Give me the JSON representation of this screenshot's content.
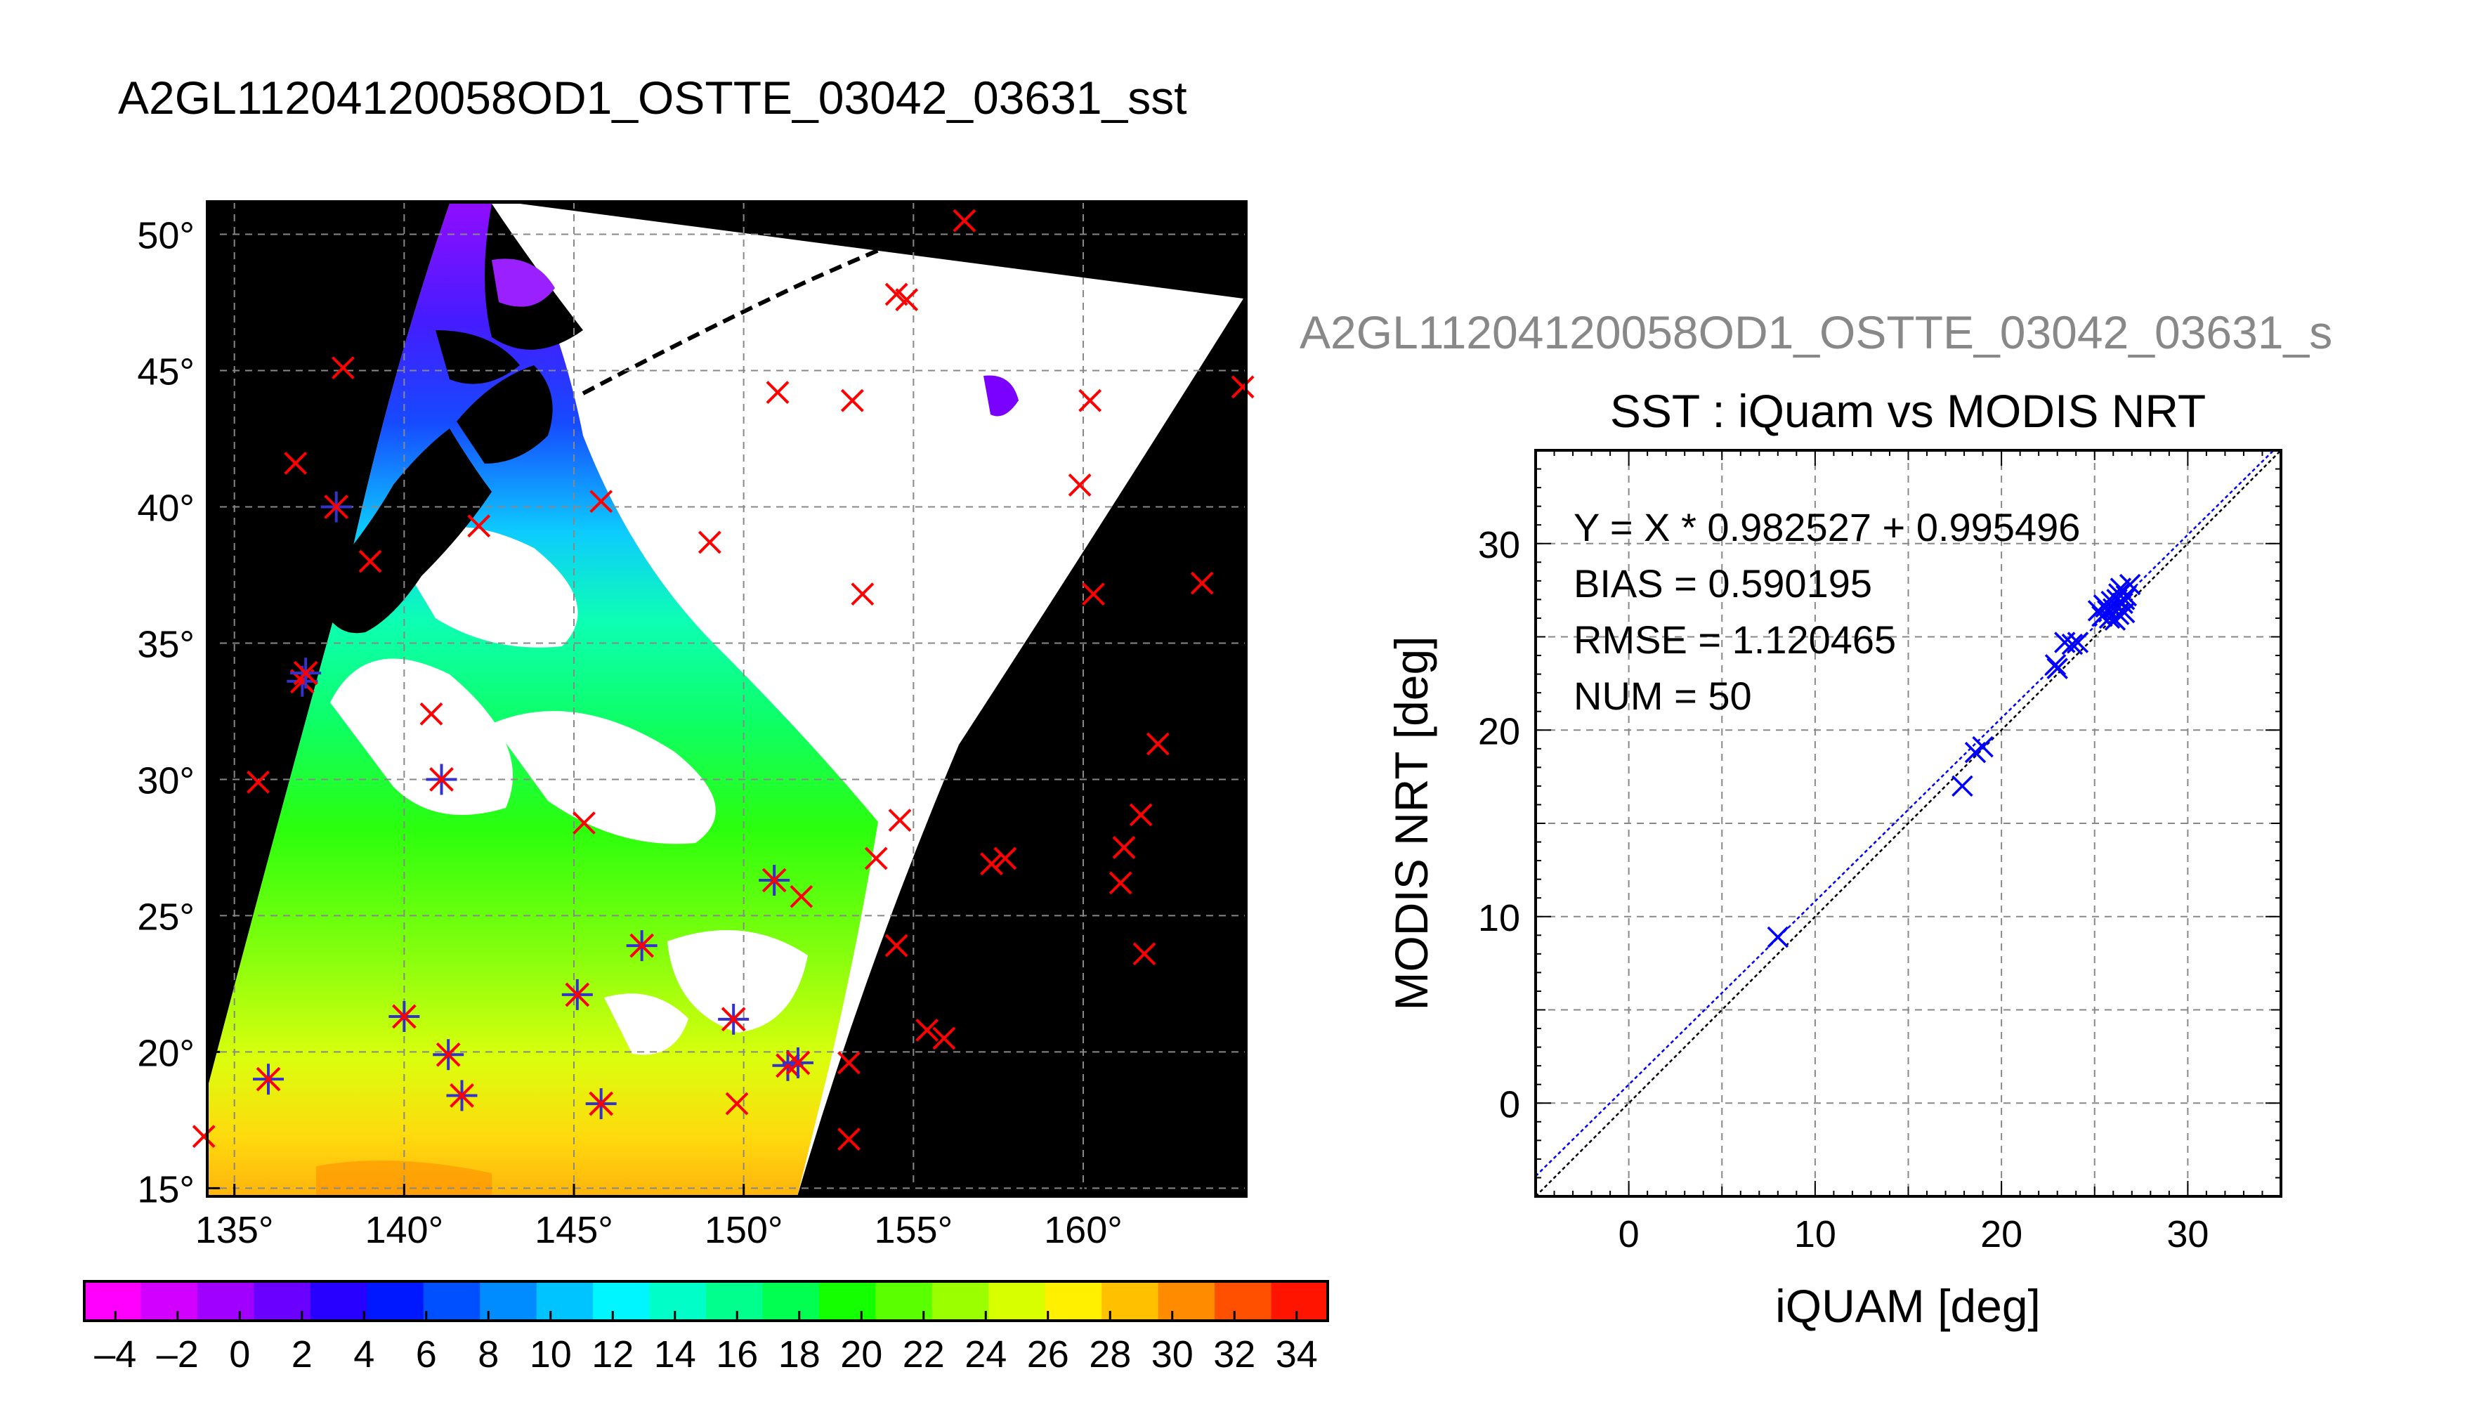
{
  "page": {
    "title": "A2GL11204120058OD1_OSTTE_03042_03631_sst",
    "title_secondary": "A2GL11204120058OD1_OSTTE_03042_03631_s"
  },
  "map": {
    "lon_ticks": [
      "135°",
      "140°",
      "145°",
      "150°",
      "155°",
      "160°"
    ],
    "lat_ticks": [
      "50°",
      "45°",
      "40°",
      "35°",
      "30°",
      "25°",
      "20°",
      "15°"
    ],
    "lon_range": [
      134.2,
      164.8
    ],
    "lat_range": [
      14.7,
      51.2
    ],
    "grid": true,
    "marker_color": "#ff0000",
    "matched_marker_color": "#3333cc",
    "insitu_x_points": [
      [
        156.5,
        50.5
      ],
      [
        154.5,
        47.8
      ],
      [
        154.8,
        47.6
      ],
      [
        138.2,
        45.1
      ],
      [
        151.0,
        44.2
      ],
      [
        153.2,
        43.9
      ],
      [
        160.2,
        43.9
      ],
      [
        164.7,
        44.4
      ],
      [
        136.8,
        41.6
      ],
      [
        159.9,
        40.8
      ],
      [
        145.8,
        40.2
      ],
      [
        149.0,
        38.7
      ],
      [
        153.5,
        36.8
      ],
      [
        160.3,
        36.8
      ],
      [
        163.5,
        37.2
      ],
      [
        140.8,
        32.4
      ],
      [
        162.2,
        31.3
      ],
      [
        135.7,
        29.9
      ],
      [
        145.3,
        28.4
      ],
      [
        154.6,
        28.5
      ],
      [
        161.7,
        28.7
      ],
      [
        161.2,
        27.5
      ],
      [
        153.9,
        27.1
      ],
      [
        157.3,
        26.9
      ],
      [
        157.7,
        27.1
      ],
      [
        161.1,
        26.2
      ],
      [
        151.7,
        25.7
      ],
      [
        154.5,
        23.9
      ],
      [
        161.8,
        23.6
      ],
      [
        155.4,
        20.8
      ],
      [
        155.9,
        20.5
      ],
      [
        153.1,
        19.6
      ],
      [
        149.8,
        18.1
      ],
      [
        134.1,
        16.9
      ],
      [
        153.1,
        16.8
      ],
      [
        139.0,
        38.0
      ],
      [
        142.2,
        39.3
      ]
    ],
    "matched_points": [
      [
        138.0,
        40.0
      ],
      [
        137.0,
        33.6
      ],
      [
        137.1,
        33.9
      ],
      [
        141.1,
        30.0
      ],
      [
        150.9,
        26.3
      ],
      [
        147.0,
        23.9
      ],
      [
        145.1,
        22.1
      ],
      [
        140.0,
        21.3
      ],
      [
        149.7,
        21.2
      ],
      [
        141.3,
        19.9
      ],
      [
        151.3,
        19.5
      ],
      [
        151.6,
        19.6
      ],
      [
        136.0,
        19.0
      ],
      [
        141.7,
        18.4
      ],
      [
        145.8,
        18.1
      ]
    ]
  },
  "colorbar": {
    "ticks": [
      "–4",
      "–2",
      "0",
      "2",
      "4",
      "6",
      "8",
      "10",
      "12",
      "14",
      "16",
      "18",
      "20",
      "22",
      "24",
      "26",
      "28",
      "30",
      "32",
      "34"
    ],
    "min": -5,
    "max": 35,
    "colors": [
      "#ff00ff",
      "#d200ff",
      "#a000ff",
      "#6a00ff",
      "#2800ff",
      "#0018ff",
      "#0050ff",
      "#008cff",
      "#00c4ff",
      "#00f6ff",
      "#00ffc8",
      "#00ff8c",
      "#00ff50",
      "#14ff00",
      "#5aff00",
      "#9cff00",
      "#d8ff00",
      "#fff000",
      "#ffc000",
      "#ff8c00",
      "#ff5000",
      "#ff1400"
    ]
  },
  "chart_data": {
    "type": "scatter",
    "title": "SST : iQuam vs MODIS NRT",
    "xlabel": "iQUAM [deg]",
    "ylabel": "MODIS NRT [deg]",
    "xlim": [
      -5,
      35
    ],
    "ylim": [
      -5,
      35
    ],
    "x_ticks": [
      "0",
      "10",
      "20",
      "30"
    ],
    "y_ticks": [
      "0",
      "10",
      "20",
      "30"
    ],
    "grid": true,
    "marker_color": "#0000ff",
    "annotations": [
      "Y = X * 0.982527 + 0.995496",
      "BIAS = 0.590195",
      "RMSE = 1.120465",
      "NUM = 50"
    ],
    "fit": {
      "slope": 0.982527,
      "intercept": 0.995496
    },
    "points": [
      [
        8.0,
        8.9
      ],
      [
        17.9,
        17.0
      ],
      [
        18.6,
        18.8
      ],
      [
        19.0,
        19.1
      ],
      [
        22.9,
        23.5
      ],
      [
        23.0,
        23.3
      ],
      [
        23.4,
        24.7
      ],
      [
        23.8,
        24.6
      ],
      [
        24.1,
        24.7
      ],
      [
        25.2,
        26.4
      ],
      [
        25.4,
        26.1
      ],
      [
        25.5,
        26.7
      ],
      [
        25.7,
        26.4
      ],
      [
        25.8,
        26.0
      ],
      [
        25.9,
        26.9
      ],
      [
        26.0,
        26.5
      ],
      [
        26.1,
        25.9
      ],
      [
        26.2,
        27.0
      ],
      [
        26.3,
        26.2
      ],
      [
        26.4,
        27.6
      ],
      [
        26.5,
        26.8
      ],
      [
        26.6,
        26.3
      ],
      [
        26.7,
        27.2
      ],
      [
        26.9,
        27.8
      ],
      [
        26.6,
        27.0
      ],
      [
        25.6,
        26.6
      ],
      [
        26.3,
        27.3
      ]
    ]
  }
}
